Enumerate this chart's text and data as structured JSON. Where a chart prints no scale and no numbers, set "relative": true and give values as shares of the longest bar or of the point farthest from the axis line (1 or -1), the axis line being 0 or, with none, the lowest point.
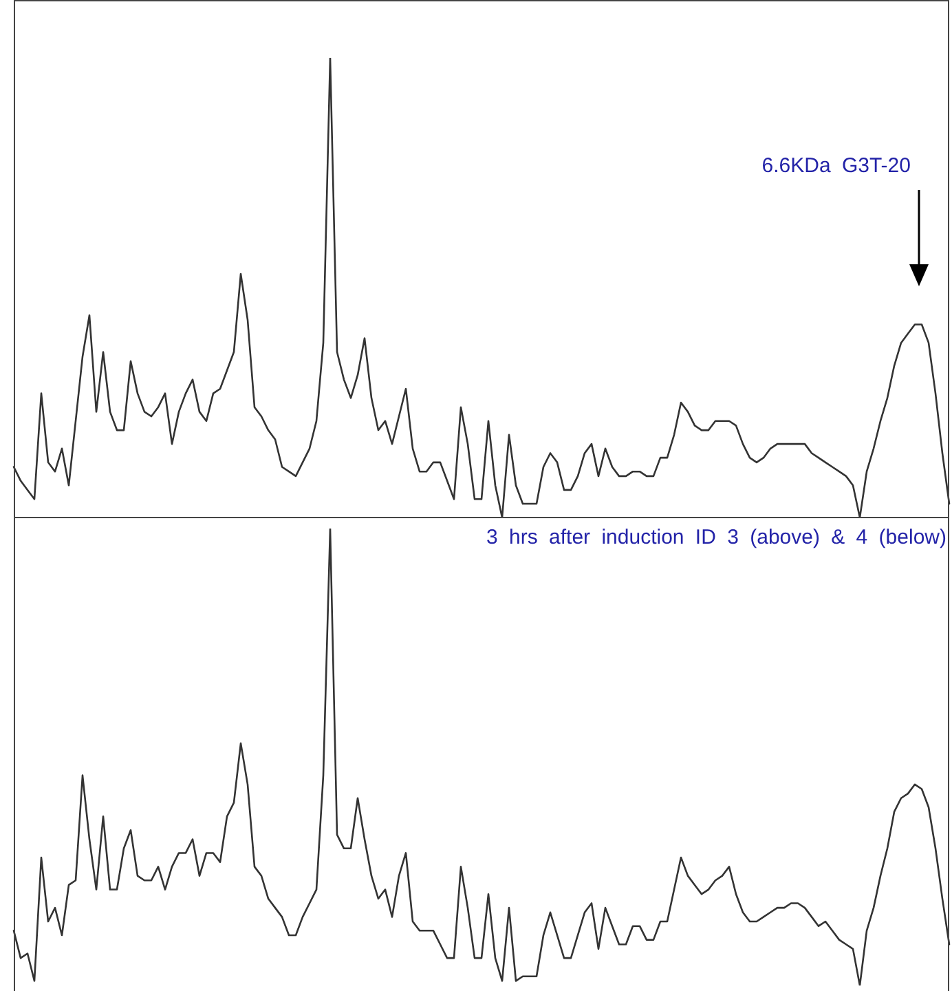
{
  "chart_data": [
    {
      "type": "line",
      "relative": true,
      "annotations": [
        "6.6KDa G3T-20"
      ],
      "categories": [
        null,
        null,
        null,
        null,
        null,
        null,
        null,
        null,
        null,
        null,
        null,
        null,
        null,
        null,
        null,
        null,
        null,
        null,
        null,
        null,
        null,
        null,
        null,
        null,
        null,
        null,
        null,
        null,
        null,
        null,
        null,
        null,
        null,
        null,
        null,
        null,
        null,
        null,
        null,
        null,
        null,
        null,
        null,
        null,
        null,
        null,
        null,
        null,
        null,
        null,
        null,
        null,
        null,
        null,
        null,
        null,
        null,
        null,
        null,
        null,
        null,
        null,
        null,
        null,
        null,
        null,
        null,
        null,
        null,
        null,
        null,
        null,
        null,
        null,
        null,
        null,
        null,
        null,
        null,
        null,
        null,
        null,
        null,
        null,
        null,
        null,
        null,
        null,
        null,
        null,
        null,
        null,
        null,
        null,
        null,
        null,
        null,
        null,
        null,
        null,
        null,
        null,
        null,
        null,
        null,
        null,
        null,
        null,
        null,
        null,
        null,
        null,
        null,
        null,
        null,
        null,
        null,
        null,
        null,
        null,
        null,
        null,
        null,
        null,
        null,
        null,
        null,
        null,
        null,
        null,
        null,
        null,
        null,
        null,
        null,
        null,
        null
      ],
      "series": [
        {
          "color": "#333333",
          "values": [
            0.11,
            0.08,
            0.06,
            0.04,
            0.27,
            0.12,
            0.1,
            0.15,
            0.07,
            0.21,
            0.35,
            0.44,
            0.23,
            0.36,
            0.23,
            0.19,
            0.19,
            0.34,
            0.27,
            0.23,
            0.22,
            0.24,
            0.27,
            0.16,
            0.23,
            0.27,
            0.3,
            0.23,
            0.21,
            0.27,
            0.28,
            0.32,
            0.36,
            0.53,
            0.43,
            0.24,
            0.22,
            0.19,
            0.17,
            0.11,
            0.1,
            0.09,
            0.12,
            0.15,
            0.21,
            0.38,
            1,
            0.36,
            0.3,
            0.26,
            0.31,
            0.39,
            0.26,
            0.19,
            0.21,
            0.16,
            0.22,
            0.28,
            0.15,
            0.1,
            0.1,
            0.12,
            0.12,
            0.08,
            0.04,
            0.24,
            0.16,
            0.04,
            0.04,
            0.21,
            0.07,
            0,
            0.18,
            0.07,
            0.03,
            0.03,
            0.03,
            0.11,
            0.14,
            0.12,
            0.06,
            0.06,
            0.09,
            0.14,
            0.16,
            0.09,
            0.15,
            0.11,
            0.09,
            0.09,
            0.1,
            0.1,
            0.09,
            0.09,
            0.13,
            0.13,
            0.18,
            0.25,
            0.23,
            0.2,
            0.19,
            0.19,
            0.21,
            0.21,
            0.21,
            0.2,
            0.16,
            0.13,
            0.12,
            0.13,
            0.15,
            0.16,
            0.16,
            0.16,
            0.16,
            0.16,
            0.14,
            0.13,
            0.12,
            0.11,
            0.1,
            0.09,
            0.07,
            0,
            0.1,
            0.15,
            0.21,
            0.26,
            0.33,
            0.38,
            0.4,
            0.42,
            0.42,
            0.38,
            0.27,
            0.14,
            0.03
          ]
        }
      ]
    },
    {
      "type": "line",
      "relative": true,
      "annotations": [
        "3 hrs after induction ID 3 (above) & 4 (below)"
      ],
      "categories": [
        null,
        null,
        null,
        null,
        null,
        null,
        null,
        null,
        null,
        null,
        null,
        null,
        null,
        null,
        null,
        null,
        null,
        null,
        null,
        null,
        null,
        null,
        null,
        null,
        null,
        null,
        null,
        null,
        null,
        null,
        null,
        null,
        null,
        null,
        null,
        null,
        null,
        null,
        null,
        null,
        null,
        null,
        null,
        null,
        null,
        null,
        null,
        null,
        null,
        null,
        null,
        null,
        null,
        null,
        null,
        null,
        null,
        null,
        null,
        null,
        null,
        null,
        null,
        null,
        null,
        null,
        null,
        null,
        null,
        null,
        null,
        null,
        null,
        null,
        null,
        null,
        null,
        null,
        null,
        null,
        null,
        null,
        null,
        null,
        null,
        null,
        null,
        null,
        null,
        null,
        null,
        null,
        null,
        null,
        null,
        null,
        null,
        null,
        null,
        null,
        null,
        null,
        null,
        null,
        null,
        null,
        null,
        null,
        null,
        null,
        null,
        null,
        null,
        null,
        null,
        null,
        null,
        null,
        null,
        null,
        null,
        null,
        null,
        null,
        null,
        null,
        null,
        null,
        null,
        null,
        null,
        null,
        null,
        null,
        null,
        null,
        null
      ],
      "series": [
        {
          "color": "#333333",
          "values": [
            0.12,
            0.06,
            0.07,
            0.01,
            0.28,
            0.14,
            0.17,
            0.11,
            0.22,
            0.23,
            0.46,
            0.32,
            0.21,
            0.37,
            0.21,
            0.21,
            0.3,
            0.34,
            0.24,
            0.23,
            0.23,
            0.26,
            0.21,
            0.26,
            0.29,
            0.29,
            0.32,
            0.24,
            0.29,
            0.29,
            0.27,
            0.37,
            0.4,
            0.53,
            0.44,
            0.26,
            0.24,
            0.19,
            0.17,
            0.15,
            0.11,
            0.11,
            0.15,
            0.18,
            0.21,
            0.46,
            1,
            0.33,
            0.3,
            0.3,
            0.41,
            0.32,
            0.24,
            0.19,
            0.21,
            0.15,
            0.24,
            0.29,
            0.14,
            0.12,
            0.12,
            0.12,
            0.09,
            0.06,
            0.06,
            0.26,
            0.17,
            0.06,
            0.06,
            0.2,
            0.06,
            0.01,
            0.17,
            0.01,
            0.02,
            0.02,
            0.02,
            0.11,
            0.16,
            0.11,
            0.06,
            0.06,
            0.11,
            0.16,
            0.18,
            0.08,
            0.17,
            0.13,
            0.09,
            0.09,
            0.13,
            0.13,
            0.1,
            0.1,
            0.14,
            0.14,
            0.21,
            0.28,
            0.24,
            0.22,
            0.2,
            0.21,
            0.23,
            0.24,
            0.26,
            0.2,
            0.16,
            0.14,
            0.14,
            0.15,
            0.16,
            0.17,
            0.17,
            0.18,
            0.18,
            0.17,
            0.15,
            0.13,
            0.14,
            0.12,
            0.1,
            0.09,
            0.08,
            0,
            0.12,
            0.17,
            0.24,
            0.3,
            0.38,
            0.41,
            0.42,
            0.44,
            0.43,
            0.39,
            0.3,
            0.19,
            0.09
          ]
        }
      ]
    }
  ]
}
